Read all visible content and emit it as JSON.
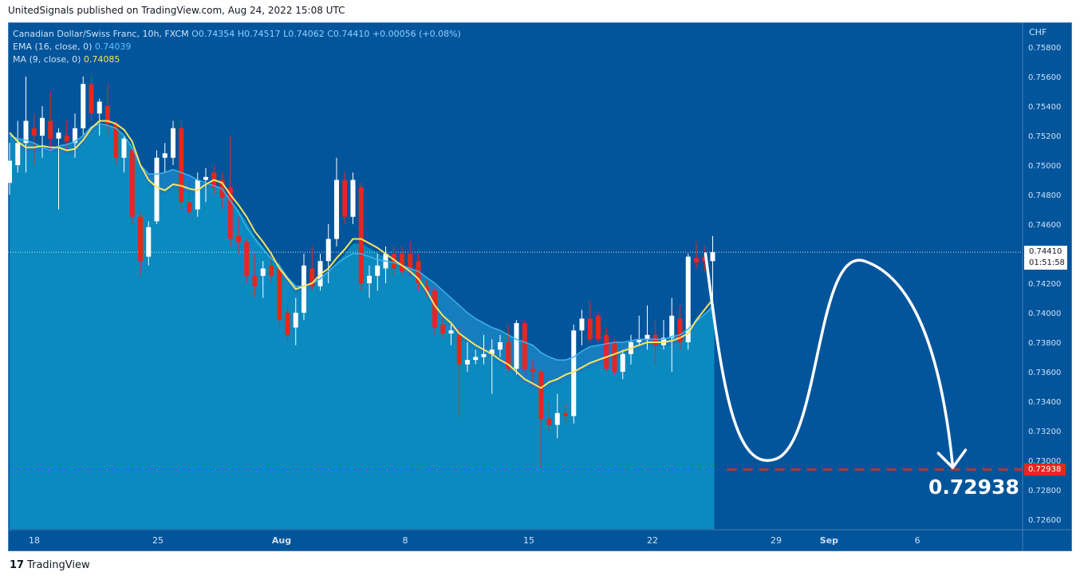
{
  "header": {
    "publisher_line": "UnitedSignals published on TradingView.com, Aug 24, 2022 15:08 UTC"
  },
  "legend": {
    "symbol": "Canadian Dollar/Swiss Franc, 10h, FXCM",
    "open": "O0.74354",
    "high": "H0.74517",
    "low": "L0.74062",
    "close": "C0.74410",
    "change": "+0.00056 (+0.08%)",
    "ema_label": "EMA (16, close, 0)",
    "ema_value": "0.74039",
    "ma_label": "MA (9, close, 0)",
    "ma_value": "0.74085"
  },
  "axis": {
    "currency": "CHF",
    "price_ticks": [
      "0.75800",
      "0.75600",
      "0.75400",
      "0.75200",
      "0.75000",
      "0.74800",
      "0.74600",
      "0.74400",
      "0.74200",
      "0.74000",
      "0.73800",
      "0.73600",
      "0.73400",
      "0.73200",
      "0.73000",
      "0.72800",
      "0.72600"
    ],
    "time_ticks": [
      "18",
      "25",
      "Aug",
      "8",
      "15",
      "22",
      "29",
      "Sep",
      "6"
    ]
  },
  "price_labels": {
    "current_price": "0.74410",
    "countdown": "01:51:58",
    "target_price": "0.72938"
  },
  "annotation": {
    "target_text": "0.72938"
  },
  "footer": {
    "brand": "TradingView"
  },
  "colors": {
    "background": "#02559b",
    "bull": "#ffffff",
    "bear": "#e5271e",
    "ema": "#3fb2e8",
    "ma": "#f5e663",
    "target_line": "#e5271e"
  },
  "chart_data": {
    "type": "candlestick",
    "title": "Canadian Dollar/Swiss Franc, 10h, FXCM",
    "y_unit": "CHF",
    "ylim": [
      0.725,
      0.759
    ],
    "x_range_days": [
      "Jul 18",
      "Sep 9"
    ],
    "candles": [
      {
        "o": 0.7488,
        "h": 0.7515,
        "l": 0.748,
        "c": 0.7503
      },
      {
        "o": 0.75,
        "h": 0.753,
        "l": 0.7495,
        "c": 0.7515
      },
      {
        "o": 0.7515,
        "h": 0.756,
        "l": 0.7495,
        "c": 0.753
      },
      {
        "o": 0.7525,
        "h": 0.7535,
        "l": 0.75,
        "c": 0.752
      },
      {
        "o": 0.752,
        "h": 0.754,
        "l": 0.7505,
        "c": 0.7532
      },
      {
        "o": 0.753,
        "h": 0.755,
        "l": 0.751,
        "c": 0.7518
      },
      {
        "o": 0.7518,
        "h": 0.7525,
        "l": 0.747,
        "c": 0.7522
      },
      {
        "o": 0.752,
        "h": 0.753,
        "l": 0.751,
        "c": 0.7516
      },
      {
        "o": 0.7515,
        "h": 0.7535,
        "l": 0.7505,
        "c": 0.7525
      },
      {
        "o": 0.7525,
        "h": 0.756,
        "l": 0.752,
        "c": 0.7555
      },
      {
        "o": 0.7555,
        "h": 0.756,
        "l": 0.753,
        "c": 0.7535
      },
      {
        "o": 0.7535,
        "h": 0.7545,
        "l": 0.752,
        "c": 0.7543
      },
      {
        "o": 0.754,
        "h": 0.7555,
        "l": 0.752,
        "c": 0.7528
      },
      {
        "o": 0.7528,
        "h": 0.753,
        "l": 0.75,
        "c": 0.7505
      },
      {
        "o": 0.7505,
        "h": 0.752,
        "l": 0.7495,
        "c": 0.7518
      },
      {
        "o": 0.751,
        "h": 0.7512,
        "l": 0.746,
        "c": 0.7465
      },
      {
        "o": 0.7465,
        "h": 0.7468,
        "l": 0.7425,
        "c": 0.7435
      },
      {
        "o": 0.7438,
        "h": 0.7462,
        "l": 0.7432,
        "c": 0.7458
      },
      {
        "o": 0.7462,
        "h": 0.751,
        "l": 0.746,
        "c": 0.7505
      },
      {
        "o": 0.7505,
        "h": 0.7515,
        "l": 0.7495,
        "c": 0.7508
      },
      {
        "o": 0.7505,
        "h": 0.753,
        "l": 0.75,
        "c": 0.7525
      },
      {
        "o": 0.7525,
        "h": 0.753,
        "l": 0.747,
        "c": 0.7475
      },
      {
        "o": 0.7475,
        "h": 0.749,
        "l": 0.7465,
        "c": 0.7468
      },
      {
        "o": 0.747,
        "h": 0.7495,
        "l": 0.7465,
        "c": 0.749
      },
      {
        "o": 0.749,
        "h": 0.7498,
        "l": 0.7475,
        "c": 0.7492
      },
      {
        "o": 0.7495,
        "h": 0.75,
        "l": 0.748,
        "c": 0.7485
      },
      {
        "o": 0.749,
        "h": 0.7495,
        "l": 0.747,
        "c": 0.7478
      },
      {
        "o": 0.7485,
        "h": 0.752,
        "l": 0.7445,
        "c": 0.745
      },
      {
        "o": 0.7452,
        "h": 0.7465,
        "l": 0.744,
        "c": 0.7448
      },
      {
        "o": 0.7448,
        "h": 0.745,
        "l": 0.742,
        "c": 0.7425
      },
      {
        "o": 0.7425,
        "h": 0.744,
        "l": 0.741,
        "c": 0.7418
      },
      {
        "o": 0.7425,
        "h": 0.7435,
        "l": 0.741,
        "c": 0.743
      },
      {
        "o": 0.7432,
        "h": 0.744,
        "l": 0.742,
        "c": 0.7425
      },
      {
        "o": 0.743,
        "h": 0.7435,
        "l": 0.739,
        "c": 0.7395
      },
      {
        "o": 0.74,
        "h": 0.7405,
        "l": 0.738,
        "c": 0.7385
      },
      {
        "o": 0.739,
        "h": 0.741,
        "l": 0.7378,
        "c": 0.74
      },
      {
        "o": 0.74,
        "h": 0.744,
        "l": 0.7395,
        "c": 0.7432
      },
      {
        "o": 0.743,
        "h": 0.7445,
        "l": 0.7415,
        "c": 0.7418
      },
      {
        "o": 0.7418,
        "h": 0.744,
        "l": 0.7415,
        "c": 0.7435
      },
      {
        "o": 0.7435,
        "h": 0.746,
        "l": 0.742,
        "c": 0.745
      },
      {
        "o": 0.745,
        "h": 0.7505,
        "l": 0.7445,
        "c": 0.749
      },
      {
        "o": 0.749,
        "h": 0.7495,
        "l": 0.746,
        "c": 0.7465
      },
      {
        "o": 0.7465,
        "h": 0.7495,
        "l": 0.746,
        "c": 0.749
      },
      {
        "o": 0.7485,
        "h": 0.7488,
        "l": 0.7415,
        "c": 0.742
      },
      {
        "o": 0.742,
        "h": 0.7432,
        "l": 0.741,
        "c": 0.7425
      },
      {
        "o": 0.7425,
        "h": 0.744,
        "l": 0.7415,
        "c": 0.7432
      },
      {
        "o": 0.743,
        "h": 0.7445,
        "l": 0.742,
        "c": 0.744
      },
      {
        "o": 0.744,
        "h": 0.7445,
        "l": 0.7425,
        "c": 0.743
      },
      {
        "o": 0.744,
        "h": 0.7445,
        "l": 0.7425,
        "c": 0.7428
      },
      {
        "o": 0.744,
        "h": 0.7448,
        "l": 0.7425,
        "c": 0.743
      },
      {
        "o": 0.7435,
        "h": 0.744,
        "l": 0.7415,
        "c": 0.742
      },
      {
        "o": 0.7418,
        "h": 0.7422,
        "l": 0.741,
        "c": 0.7415
      },
      {
        "o": 0.7415,
        "h": 0.7418,
        "l": 0.7385,
        "c": 0.739
      },
      {
        "o": 0.7392,
        "h": 0.7398,
        "l": 0.7383,
        "c": 0.7386
      },
      {
        "o": 0.7386,
        "h": 0.7392,
        "l": 0.7378,
        "c": 0.7388
      },
      {
        "o": 0.7385,
        "h": 0.739,
        "l": 0.733,
        "c": 0.7365
      },
      {
        "o": 0.7365,
        "h": 0.738,
        "l": 0.736,
        "c": 0.7368
      },
      {
        "o": 0.7368,
        "h": 0.7375,
        "l": 0.7365,
        "c": 0.737
      },
      {
        "o": 0.737,
        "h": 0.7385,
        "l": 0.7365,
        "c": 0.7372
      },
      {
        "o": 0.7372,
        "h": 0.7382,
        "l": 0.7345,
        "c": 0.7375
      },
      {
        "o": 0.7375,
        "h": 0.7385,
        "l": 0.737,
        "c": 0.738
      },
      {
        "o": 0.738,
        "h": 0.7392,
        "l": 0.736,
        "c": 0.7362
      },
      {
        "o": 0.7362,
        "h": 0.7395,
        "l": 0.7358,
        "c": 0.7393
      },
      {
        "o": 0.7393,
        "h": 0.7395,
        "l": 0.736,
        "c": 0.7362
      },
      {
        "o": 0.7362,
        "h": 0.7368,
        "l": 0.735,
        "c": 0.736
      },
      {
        "o": 0.736,
        "h": 0.7362,
        "l": 0.7295,
        "c": 0.7328
      },
      {
        "o": 0.7328,
        "h": 0.734,
        "l": 0.732,
        "c": 0.7324
      },
      {
        "o": 0.7324,
        "h": 0.7345,
        "l": 0.7315,
        "c": 0.7332
      },
      {
        "o": 0.7332,
        "h": 0.7338,
        "l": 0.7325,
        "c": 0.733
      },
      {
        "o": 0.733,
        "h": 0.7392,
        "l": 0.7325,
        "c": 0.7388
      },
      {
        "o": 0.7388,
        "h": 0.7402,
        "l": 0.7378,
        "c": 0.7396
      },
      {
        "o": 0.7396,
        "h": 0.7408,
        "l": 0.738,
        "c": 0.7382
      },
      {
        "o": 0.7398,
        "h": 0.74,
        "l": 0.738,
        "c": 0.7382
      },
      {
        "o": 0.7385,
        "h": 0.739,
        "l": 0.736,
        "c": 0.7362
      },
      {
        "o": 0.738,
        "h": 0.7382,
        "l": 0.7358,
        "c": 0.736
      },
      {
        "o": 0.736,
        "h": 0.7375,
        "l": 0.7355,
        "c": 0.7372
      },
      {
        "o": 0.7372,
        "h": 0.7385,
        "l": 0.7365,
        "c": 0.738
      },
      {
        "o": 0.738,
        "h": 0.7398,
        "l": 0.7378,
        "c": 0.7382
      },
      {
        "o": 0.7382,
        "h": 0.7405,
        "l": 0.7375,
        "c": 0.7385
      },
      {
        "o": 0.7385,
        "h": 0.7395,
        "l": 0.7365,
        "c": 0.7378
      },
      {
        "o": 0.7378,
        "h": 0.7395,
        "l": 0.7375,
        "c": 0.7383
      },
      {
        "o": 0.7383,
        "h": 0.741,
        "l": 0.736,
        "c": 0.7398
      },
      {
        "o": 0.7396,
        "h": 0.7405,
        "l": 0.7375,
        "c": 0.738
      },
      {
        "o": 0.738,
        "h": 0.744,
        "l": 0.7375,
        "c": 0.7438
      },
      {
        "o": 0.7437,
        "h": 0.7448,
        "l": 0.743,
        "c": 0.7434
      },
      {
        "o": 0.7438,
        "h": 0.7445,
        "l": 0.7428,
        "c": 0.7435
      },
      {
        "o": 0.7435,
        "h": 0.7452,
        "l": 0.7406,
        "c": 0.7441
      }
    ],
    "ema16": [
      0.752,
      0.7518,
      0.7517,
      0.7515,
      0.7512,
      0.751,
      0.7513,
      0.7514,
      0.7516,
      0.752,
      0.7526,
      0.7528,
      0.7527,
      0.7525,
      0.752,
      0.7512,
      0.75,
      0.7494,
      0.7494,
      0.7495,
      0.7497,
      0.7495,
      0.7493,
      0.749,
      0.7488,
      0.7486,
      0.7484,
      0.7476,
      0.7468,
      0.7458,
      0.745,
      0.7443,
      0.7437,
      0.7432,
      0.7424,
      0.7418,
      0.7418,
      0.742,
      0.7423,
      0.7428,
      0.7433,
      0.7437,
      0.744,
      0.744,
      0.7438,
      0.7436,
      0.7435,
      0.7434,
      0.7432,
      0.743,
      0.7428,
      0.7424,
      0.742,
      0.7415,
      0.741,
      0.7405,
      0.74,
      0.7396,
      0.7393,
      0.739,
      0.7388,
      0.7385,
      0.7382,
      0.738,
      0.7378,
      0.7373,
      0.737,
      0.7368,
      0.7368,
      0.737,
      0.7374,
      0.7377,
      0.7378,
      0.7379,
      0.738,
      0.738,
      0.7381,
      0.7382,
      0.7382,
      0.7382,
      0.7382,
      0.7384,
      0.7385,
      0.7389,
      0.7394,
      0.7399,
      0.7404
    ],
    "ma9": [
      0.7522,
      0.7516,
      0.7512,
      0.7512,
      0.7513,
      0.7512,
      0.7512,
      0.751,
      0.7511,
      0.7517,
      0.7525,
      0.753,
      0.753,
      0.7528,
      0.7524,
      0.7516,
      0.75,
      0.749,
      0.7485,
      0.7483,
      0.7487,
      0.7486,
      0.7484,
      0.7483,
      0.7487,
      0.749,
      0.7488,
      0.748,
      0.7473,
      0.7465,
      0.7455,
      0.7448,
      0.744,
      0.743,
      0.7423,
      0.7416,
      0.7418,
      0.742,
      0.7426,
      0.743,
      0.7437,
      0.7443,
      0.745,
      0.745,
      0.7447,
      0.7444,
      0.744,
      0.7436,
      0.7432,
      0.7428,
      0.7423,
      0.7415,
      0.7405,
      0.7398,
      0.7393,
      0.7386,
      0.7382,
      0.7378,
      0.7375,
      0.7372,
      0.7368,
      0.7365,
      0.736,
      0.7355,
      0.7352,
      0.7349,
      0.7353,
      0.7355,
      0.7358,
      0.736,
      0.7363,
      0.7366,
      0.7368,
      0.737,
      0.7372,
      0.7374,
      0.7376,
      0.7378,
      0.738,
      0.738,
      0.738,
      0.7381,
      0.7383,
      0.7386,
      0.7395,
      0.7402,
      0.7409
    ],
    "current_price": 0.7441,
    "target_price": 0.72938,
    "projection_path": [
      {
        "x": "Aug 25",
        "y": 0.744
      },
      {
        "x": "Aug 29",
        "y": 0.7301
      },
      {
        "x": "Sep 3",
        "y": 0.7435
      },
      {
        "x": "Sep 8",
        "y": 0.7294
      }
    ]
  }
}
